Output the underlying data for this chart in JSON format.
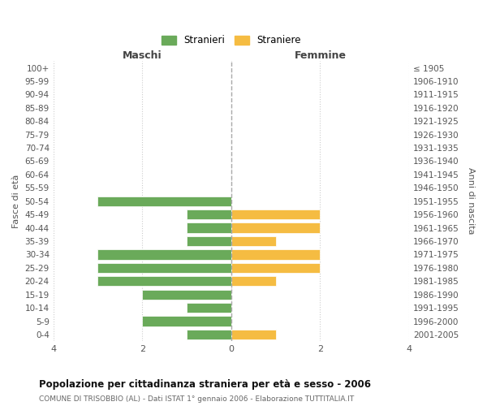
{
  "age_groups": [
    "100+",
    "95-99",
    "90-94",
    "85-89",
    "80-84",
    "75-79",
    "70-74",
    "65-69",
    "60-64",
    "55-59",
    "50-54",
    "45-49",
    "40-44",
    "35-39",
    "30-34",
    "25-29",
    "20-24",
    "15-19",
    "10-14",
    "5-9",
    "0-4"
  ],
  "birth_years": [
    "≤ 1905",
    "1906-1910",
    "1911-1915",
    "1916-1920",
    "1921-1925",
    "1926-1930",
    "1931-1935",
    "1936-1940",
    "1941-1945",
    "1946-1950",
    "1951-1955",
    "1956-1960",
    "1961-1965",
    "1966-1970",
    "1971-1975",
    "1976-1980",
    "1981-1985",
    "1986-1990",
    "1991-1995",
    "1996-2000",
    "2001-2005"
  ],
  "maschi": [
    0,
    0,
    0,
    0,
    0,
    0,
    0,
    0,
    0,
    0,
    3,
    1,
    1,
    1,
    3,
    3,
    3,
    2,
    1,
    2,
    1
  ],
  "femmine": [
    0,
    0,
    0,
    0,
    0,
    0,
    0,
    0,
    0,
    0,
    0,
    2,
    2,
    1,
    2,
    2,
    1,
    0,
    0,
    0,
    1
  ],
  "color_maschi": "#6aaa5a",
  "color_femmine": "#f5bc42",
  "title_bold": "Popolazione per cittadinanza straniera per età e sesso - 2006",
  "subtitle": "COMUNE DI TRISOBBIO (AL) - Dati ISTAT 1° gennaio 2006 - Elaborazione TUTTITALIA.IT",
  "xlabel_left": "Maschi",
  "xlabel_right": "Femmine",
  "ylabel_left": "Fasce di età",
  "ylabel_right": "Anni di nascita",
  "legend_stranieri": "Stranieri",
  "legend_straniere": "Straniere",
  "xlim": 4,
  "background_color": "#ffffff",
  "grid_color": "#cccccc"
}
